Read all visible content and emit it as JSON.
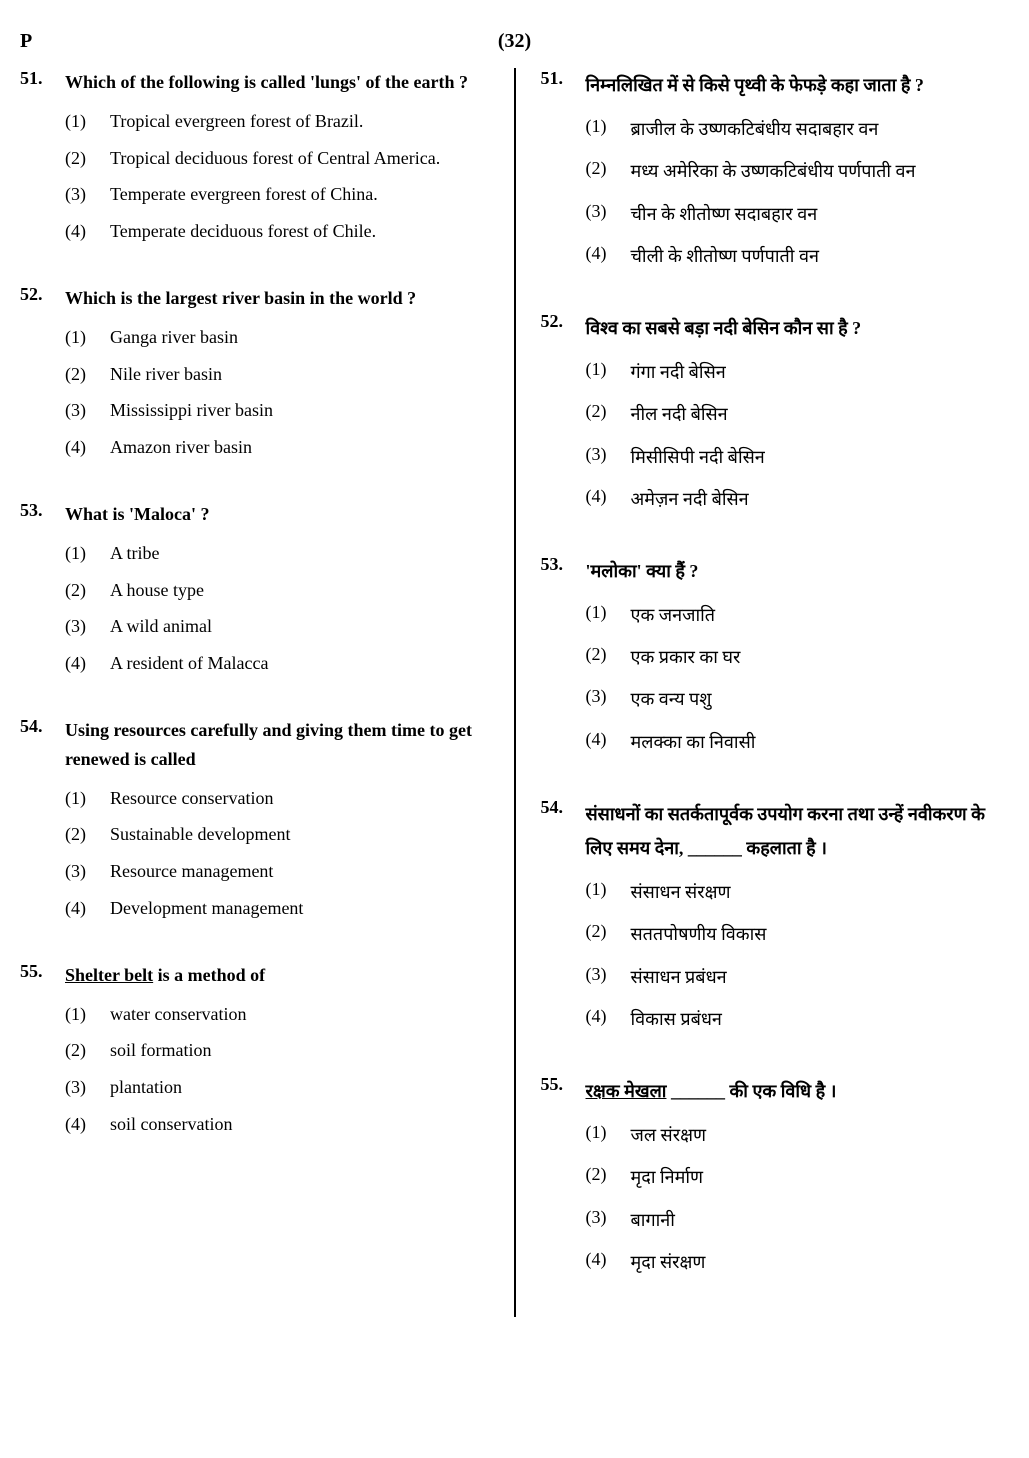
{
  "header": {
    "left": "P",
    "center": "(32)"
  },
  "left_column": {
    "questions": [
      {
        "num": "51.",
        "text": "Which of the following is called 'lungs' of the earth ?",
        "options": [
          {
            "num": "(1)",
            "text": "Tropical evergreen forest of Brazil."
          },
          {
            "num": "(2)",
            "text": "Tropical deciduous forest of Central America."
          },
          {
            "num": "(3)",
            "text": "Temperate evergreen forest of China."
          },
          {
            "num": "(4)",
            "text": "Temperate deciduous forest of Chile."
          }
        ]
      },
      {
        "num": "52.",
        "text": "Which is the largest river basin in the world ?",
        "options": [
          {
            "num": "(1)",
            "text": "Ganga river basin"
          },
          {
            "num": "(2)",
            "text": "Nile river basin"
          },
          {
            "num": "(3)",
            "text": "Mississippi river basin"
          },
          {
            "num": "(4)",
            "text": "Amazon river basin"
          }
        ]
      },
      {
        "num": "53.",
        "text": "What is 'Maloca' ?",
        "options": [
          {
            "num": "(1)",
            "text": "A tribe"
          },
          {
            "num": "(2)",
            "text": "A house type"
          },
          {
            "num": "(3)",
            "text": "A wild animal"
          },
          {
            "num": "(4)",
            "text": "A resident of Malacca"
          }
        ]
      },
      {
        "num": "54.",
        "text": "Using resources carefully and giving them time to get renewed is called",
        "options": [
          {
            "num": "(1)",
            "text": "Resource conservation"
          },
          {
            "num": "(2)",
            "text": "Sustainable development"
          },
          {
            "num": "(3)",
            "text": "Resource management"
          },
          {
            "num": "(4)",
            "text": "Development management"
          }
        ]
      },
      {
        "num": "55.",
        "text_prefix": "Shelter belt",
        "text_suffix": " is a method of",
        "options": [
          {
            "num": "(1)",
            "text": "water conservation"
          },
          {
            "num": "(2)",
            "text": "soil formation"
          },
          {
            "num": "(3)",
            "text": "plantation"
          },
          {
            "num": "(4)",
            "text": "soil conservation"
          }
        ]
      }
    ]
  },
  "right_column": {
    "questions": [
      {
        "num": "51.",
        "text": "निम्नलिखित में से किसे पृथ्वी के फेफड़े कहा जाता है ?",
        "options": [
          {
            "num": "(1)",
            "text": "ब्राजील के उष्णकटिबंधीय सदाबहार वन"
          },
          {
            "num": "(2)",
            "text": "मध्य अमेरिका के उष्णकटिबंधीय पर्णपाती वन"
          },
          {
            "num": "(3)",
            "text": "चीन के शीतोष्ण सदाबहार वन"
          },
          {
            "num": "(4)",
            "text": "चीली के शीतोष्ण पर्णपाती वन"
          }
        ]
      },
      {
        "num": "52.",
        "text": "विश्व का सबसे बड़ा नदी बेसिन कौन सा है ?",
        "options": [
          {
            "num": "(1)",
            "text": "गंगा नदी बेसिन"
          },
          {
            "num": "(2)",
            "text": "नील नदी बेसिन"
          },
          {
            "num": "(3)",
            "text": "मिसीसिपी नदी बेसिन"
          },
          {
            "num": "(4)",
            "text": "अमेज़न नदी बेसिन"
          }
        ]
      },
      {
        "num": "53.",
        "text": "'मलोका' क्या हैं ?",
        "options": [
          {
            "num": "(1)",
            "text": "एक जनजाति"
          },
          {
            "num": "(2)",
            "text": "एक प्रकार का घर"
          },
          {
            "num": "(3)",
            "text": "एक वन्य पशु"
          },
          {
            "num": "(4)",
            "text": "मलक्का का निवासी"
          }
        ]
      },
      {
        "num": "54.",
        "text": "संसाधनों का सतर्कतापूर्वक उपयोग करना तथा उन्हें नवीकरण के लिए समय देना, ______ कहलाता है ।",
        "options": [
          {
            "num": "(1)",
            "text": "संसाधन संरक्षण"
          },
          {
            "num": "(2)",
            "text": "सततपोषणीय विकास"
          },
          {
            "num": "(3)",
            "text": "संसाधन प्रबंधन"
          },
          {
            "num": "(4)",
            "text": "विकास प्रबंधन"
          }
        ]
      },
      {
        "num": "55.",
        "text_prefix": "रक्षक मेखला",
        "text_suffix": " ______ की एक विधि है ।",
        "options": [
          {
            "num": "(1)",
            "text": "जल संरक्षण"
          },
          {
            "num": "(2)",
            "text": "मृदा निर्माण"
          },
          {
            "num": "(3)",
            "text": "बागानी"
          },
          {
            "num": "(4)",
            "text": "मृदा संरक्षण"
          }
        ]
      }
    ]
  }
}
